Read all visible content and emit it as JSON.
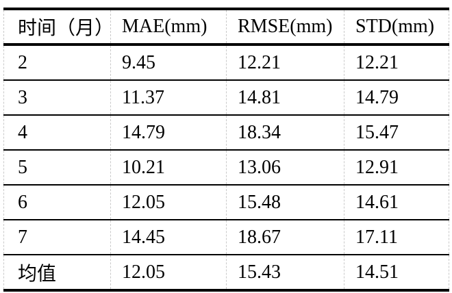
{
  "page": {
    "background": "#ffffff",
    "text_color": "#000000"
  },
  "table": {
    "columns": [
      "时间（月）",
      "MAE(mm)",
      "RMSE(mm)",
      "STD(mm)"
    ],
    "rows": [
      [
        "2",
        "9.45",
        "12.21",
        "12.21"
      ],
      [
        "3",
        "11.37",
        "14.81",
        "14.79"
      ],
      [
        "4",
        "14.79",
        "18.34",
        "15.47"
      ],
      [
        "5",
        "10.21",
        "13.06",
        "12.91"
      ],
      [
        "6",
        "12.05",
        "15.48",
        "14.61"
      ],
      [
        "7",
        "14.45",
        "18.67",
        "17.11"
      ],
      [
        "均值",
        "12.05",
        "15.43",
        "14.51"
      ]
    ],
    "colors": {
      "rule_thick": "#000000",
      "rule_thin": "#000000",
      "gridline_dashed": "#c9c9c9"
    }
  },
  "chart_data": {
    "type": "table",
    "title": "",
    "columns": [
      "时间（月）",
      "MAE(mm)",
      "RMSE(mm)",
      "STD(mm)"
    ],
    "rows": [
      [
        "2",
        "9.45",
        "12.21",
        "12.21"
      ],
      [
        "3",
        "11.37",
        "14.81",
        "14.79"
      ],
      [
        "4",
        "14.79",
        "18.34",
        "15.47"
      ],
      [
        "5",
        "10.21",
        "13.06",
        "12.91"
      ],
      [
        "6",
        "12.05",
        "15.48",
        "14.61"
      ],
      [
        "7",
        "14.45",
        "18.67",
        "17.11"
      ],
      [
        "均值",
        "12.05",
        "15.43",
        "14.51"
      ]
    ]
  }
}
